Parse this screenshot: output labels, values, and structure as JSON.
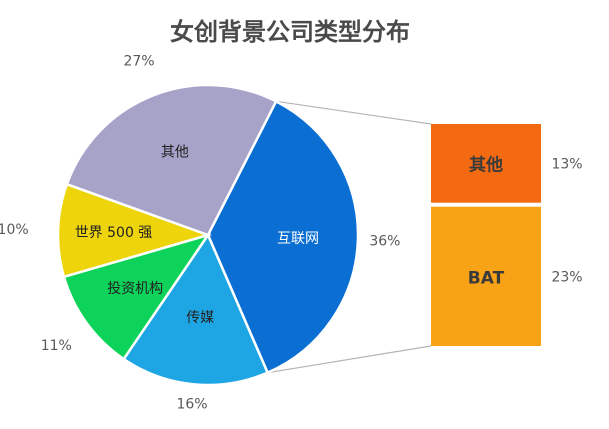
{
  "title": "女创背景公司类型分布",
  "chart_data": {
    "type": "pie",
    "title": "女创背景公司类型分布",
    "slices": [
      {
        "label": "互联网",
        "value": 36,
        "value_label": "36%",
        "color": "#0b6ed3"
      },
      {
        "label": "传媒",
        "value": 16,
        "value_label": "16%",
        "color": "#1ea5e3"
      },
      {
        "label": "投资机构",
        "value": 11,
        "value_label": "11%",
        "color": "#0dd35a"
      },
      {
        "label": "世界 500 强",
        "value": 10,
        "value_label": "10%",
        "color": "#eed50b"
      },
      {
        "label": "其他",
        "value": 27,
        "value_label": "27%",
        "color": "#a6a2c8"
      }
    ],
    "breakdown": {
      "parent": "互联网",
      "type": "stacked-bar",
      "segments": [
        {
          "label": "其他",
          "value": 13,
          "value_label": "13%",
          "color": "#f46a12"
        },
        {
          "label": "BAT",
          "value": 23,
          "value_label": "23%",
          "color": "#f8a216"
        }
      ]
    }
  }
}
